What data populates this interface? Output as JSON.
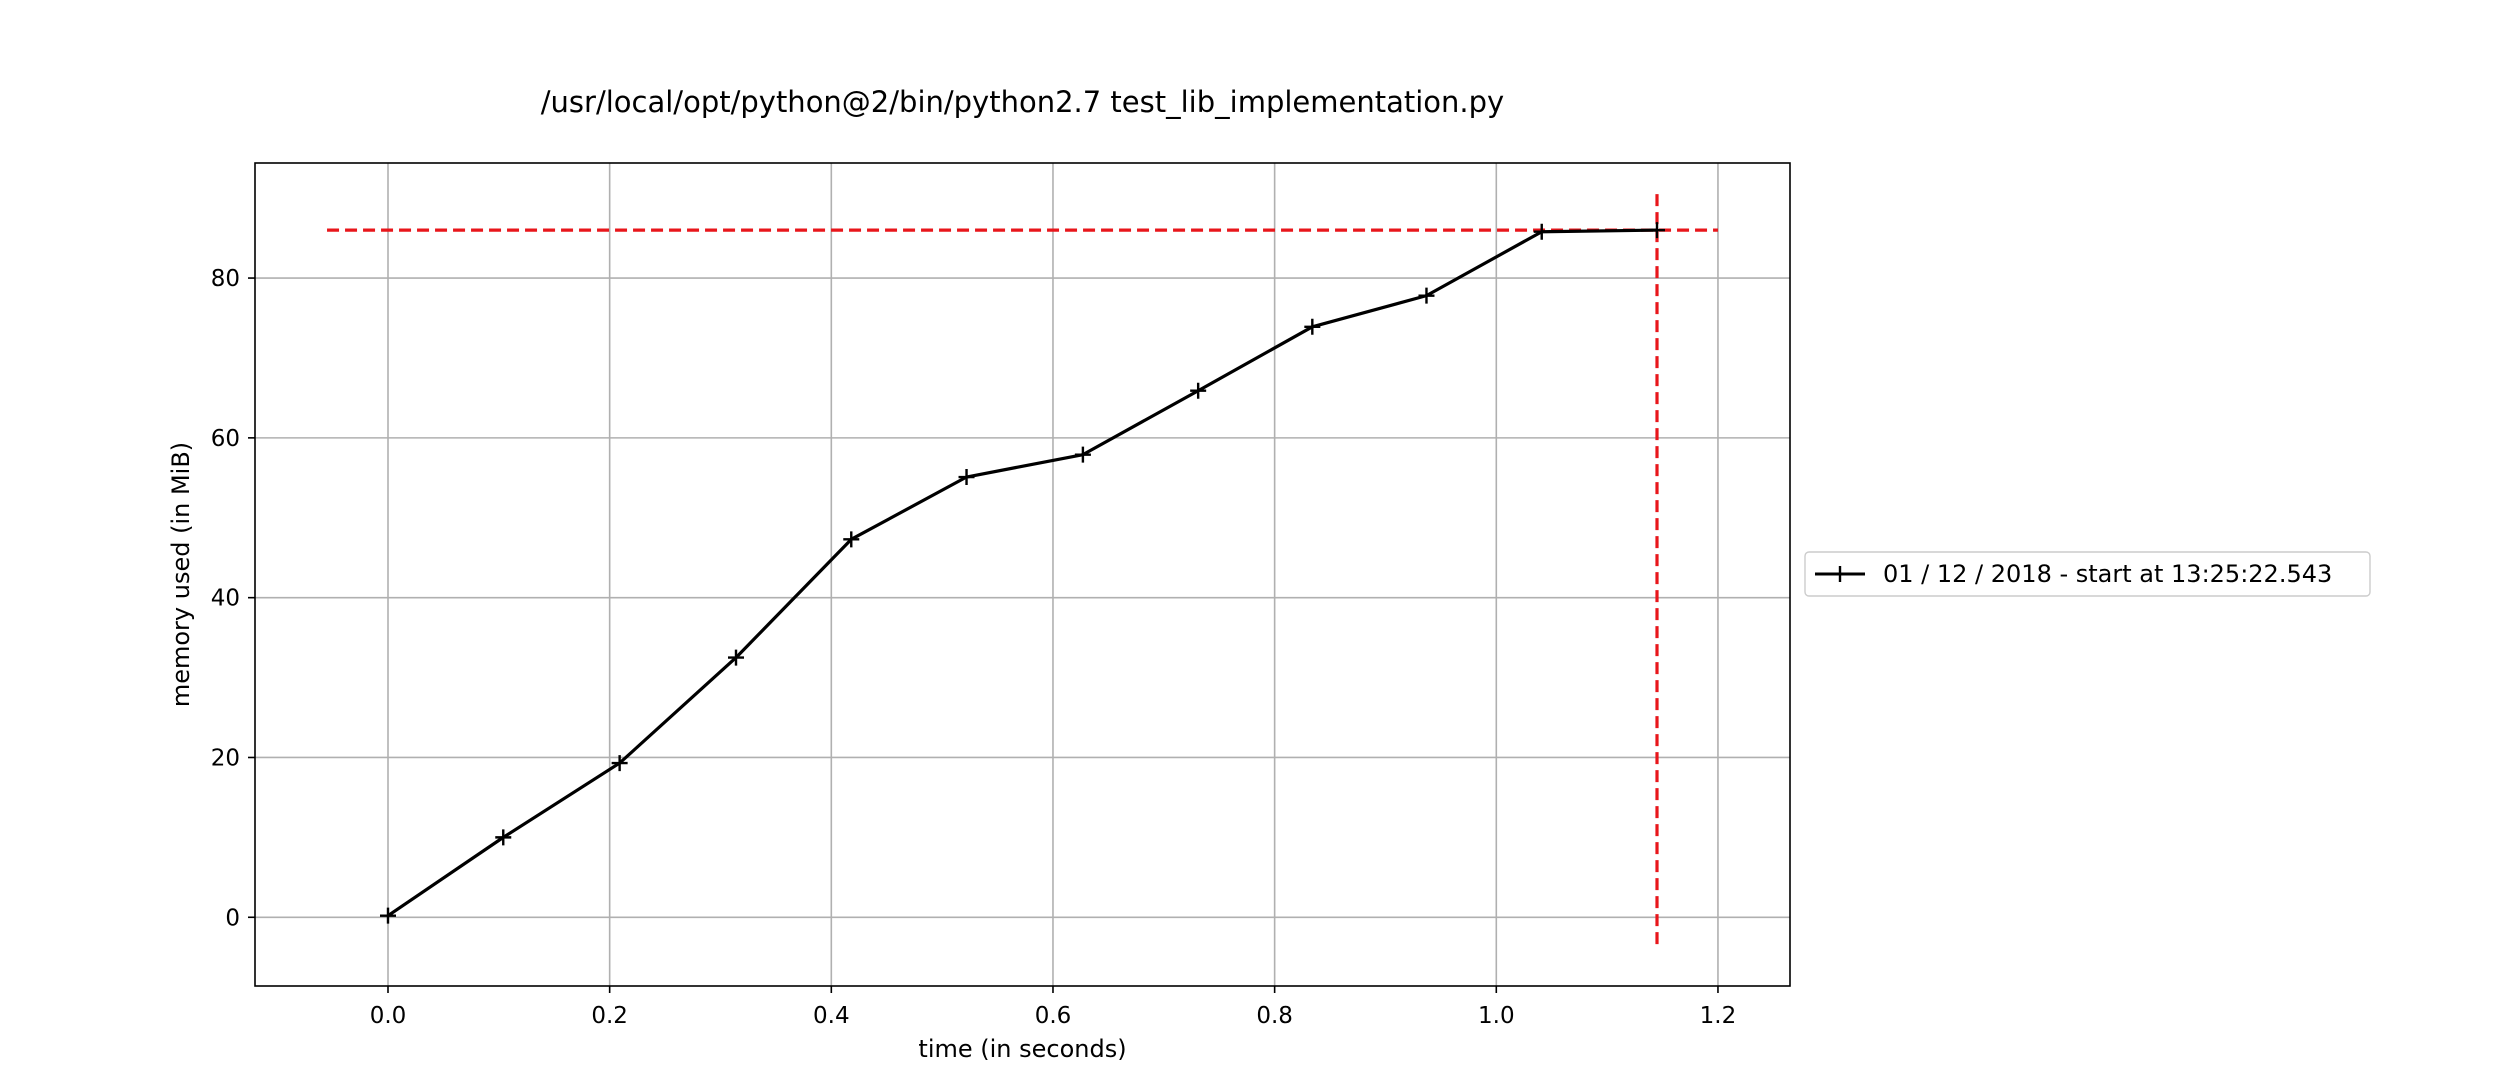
{
  "chart_data": {
    "type": "line",
    "title": "/usr/local/opt/python@2/bin/python2.7 test_lib_implementation.py",
    "xlabel": "time (in seconds)",
    "ylabel": "memory used (in MiB)",
    "xlim": [
      -0.12,
      1.265
    ],
    "ylim": [
      -8.6,
      94.4
    ],
    "grid": true,
    "legend_position": "right, outside plot",
    "x_ticks": [
      0.0,
      0.2,
      0.4,
      0.6,
      0.8,
      1.0,
      1.2
    ],
    "x_tick_labels": [
      "0.0",
      "0.2",
      "0.4",
      "0.6",
      "0.8",
      "1.0",
      "1.2"
    ],
    "y_ticks": [
      0,
      20,
      40,
      60,
      80
    ],
    "y_tick_labels": [
      "0",
      "20",
      "40",
      "60",
      "80"
    ],
    "series": [
      {
        "name": "01 / 12 / 2018 - start at 13:25:22.543",
        "color": "#000000",
        "marker": "+",
        "x": [
          0.0,
          0.104,
          0.209,
          0.314,
          0.418,
          0.522,
          0.627,
          0.731,
          0.834,
          0.937,
          1.041,
          1.145
        ],
        "y": [
          0.2,
          10.0,
          19.3,
          32.5,
          47.3,
          55.1,
          57.9,
          65.9,
          73.9,
          77.8,
          85.8,
          86.0
        ]
      }
    ],
    "reference_lines": [
      {
        "orientation": "horizontal",
        "y": 86.0,
        "x_from": -0.055,
        "x_to": 1.2,
        "color": "#e8161b",
        "style": "dashed"
      },
      {
        "orientation": "vertical",
        "x": 1.145,
        "y_from": -4.0,
        "y_to": 90.5,
        "color": "#e8161b",
        "style": "dashed"
      }
    ]
  }
}
